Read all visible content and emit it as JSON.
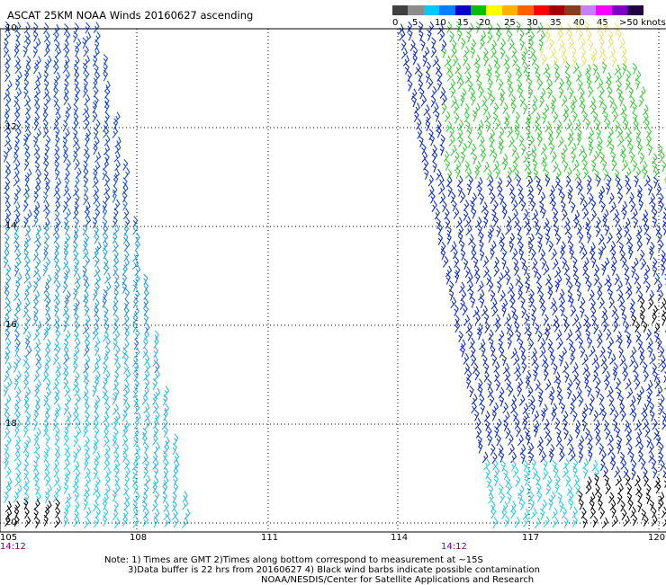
{
  "title": "ASCAT 25KM NOAA Winds 20160627 ascending",
  "scale": {
    "colors": [
      "#404040",
      "#8c8c8c",
      "#00c8ff",
      "#0080ff",
      "#0000c8",
      "#00c000",
      "#ffff00",
      "#ffb000",
      "#ff6000",
      "#ff0000",
      "#a00000",
      "#804020",
      "#c080ff",
      "#ff00ff",
      "#8000c0",
      "#200040"
    ],
    "labels": [
      "0",
      "5",
      "10",
      "15",
      "20",
      "25",
      "30",
      "35",
      "40",
      "45",
      ">50 knots"
    ]
  },
  "lat_labels": [
    "10",
    "12",
    "14",
    "16",
    "18",
    "20"
  ],
  "lon_labels": [
    "105",
    "108",
    "111",
    "114",
    "117",
    "120"
  ],
  "times": [
    "14:12",
    "14:12"
  ],
  "notes": [
    "Note: 1) Times are GMT 2)Times along bottom correspond to measurement at ~15S",
    "3)Data buffer is 22 hrs from 20160627 4) Black wind barbs indicate possible contamination",
    "NOAA/NESDIS/Center for Satellite Applications and Research"
  ]
}
